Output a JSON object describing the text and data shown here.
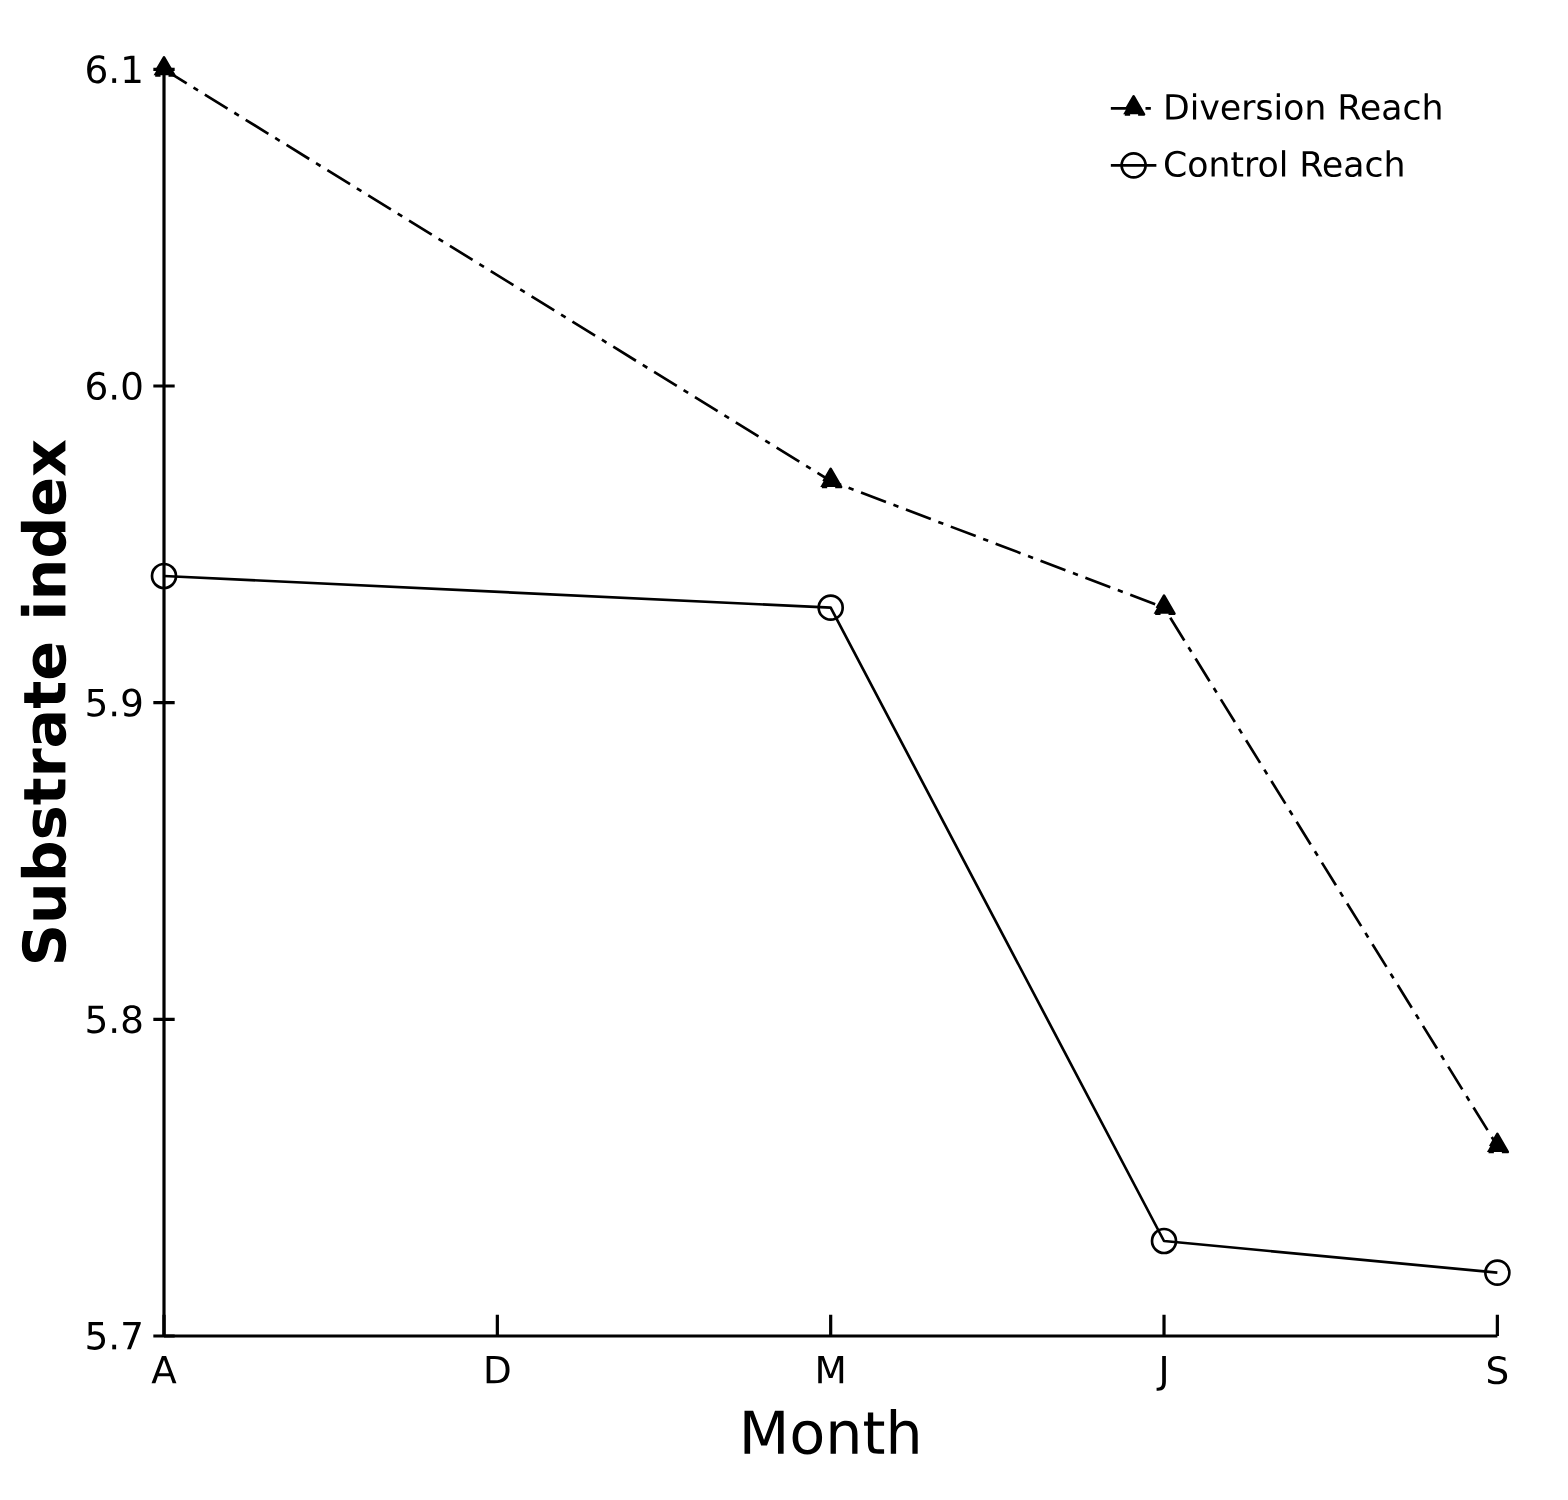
{
  "chart_data": {
    "type": "line",
    "xlabel": "Month",
    "ylabel": "Substrate index",
    "categories": [
      "A",
      "D",
      "M",
      "J",
      "S"
    ],
    "series": [
      {
        "name": "Diversion Reach",
        "color": "#000000",
        "marker": "triangle",
        "line_style": "dashed",
        "values": [
          6.1,
          null,
          5.97,
          5.93,
          5.76
        ]
      },
      {
        "name": "Control Reach",
        "color": "#000000",
        "marker": "circle",
        "line_style": "solid",
        "values": [
          5.94,
          null,
          5.93,
          5.73,
          5.72
        ]
      }
    ],
    "ylim": [
      5.7,
      6.1
    ],
    "yticks": [
      5.7,
      5.8,
      5.9,
      {
        "value": 6.0,
        "label": "6.0"
      },
      6.1
    ],
    "grid": false,
    "legend": "top right"
  }
}
